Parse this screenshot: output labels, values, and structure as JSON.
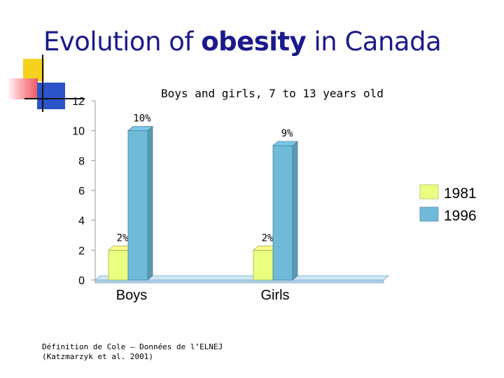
{
  "slide": {
    "title_part1": "Evolution of ",
    "title_bold": "obesity",
    "title_part2": " in Canada"
  },
  "footnote": {
    "line1": "Définition de Cole – Données de l’ELNEJ",
    "line2": "(Katzmarzyk et al. 2001)"
  },
  "chart_data": {
    "type": "bar",
    "title": "Boys and girls, 7 to 13 years old",
    "categories": [
      "Boys",
      "Girls"
    ],
    "series": [
      {
        "name": "1981",
        "values": [
          2,
          2
        ],
        "labels": [
          "2%",
          "2%"
        ],
        "color": "#eaff80"
      },
      {
        "name": "1996",
        "values": [
          10,
          9
        ],
        "labels": [
          "10%",
          "9%"
        ],
        "color": "#6fbad9"
      }
    ],
    "yticks": [
      "0",
      "2",
      "4",
      "6",
      "8",
      "10",
      "12"
    ],
    "ylim": [
      0,
      12
    ],
    "xlabel": "",
    "ylabel": "",
    "grid": false,
    "legend": "right"
  }
}
